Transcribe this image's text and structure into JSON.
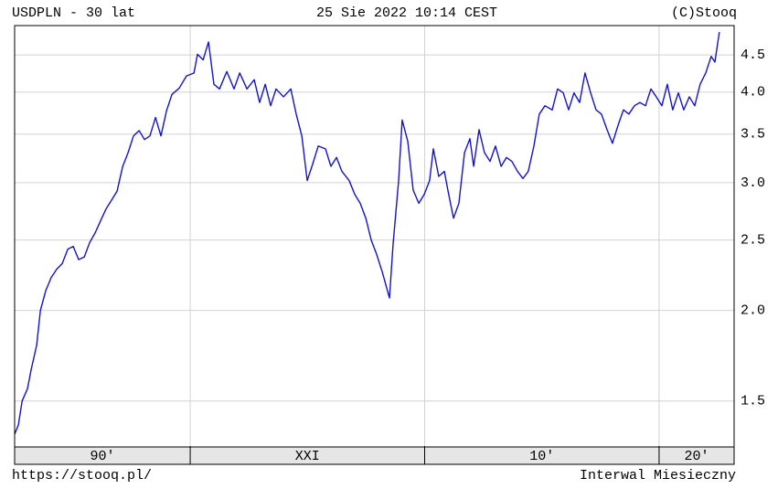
{
  "chart_data": {
    "type": "line",
    "title": "USDPLN - 30 lat",
    "date": "25 Sie 2022 10:14 CEST",
    "source": "(C)Stooq",
    "url": "https://stooq.pl/",
    "interval": "Interwal Miesieczny",
    "color": "#1414c8",
    "log_y": true,
    "grid": true,
    "xlim": [
      1992.51,
      2023.2
    ],
    "ylim": [
      1.3,
      4.94
    ],
    "yticks": [
      1.5,
      {
        "value": 2,
        "label": "2.0"
      },
      2.5,
      {
        "value": 3,
        "label": "3.0"
      },
      3.5,
      {
        "value": 4,
        "label": "4.0"
      },
      4.5
    ],
    "decades": [
      {
        "value": 1990,
        "label": "90'"
      },
      {
        "value": 2000,
        "label": "XXI"
      },
      {
        "value": 2010,
        "label": "10'"
      },
      {
        "value": 2020,
        "label": "20'"
      }
    ],
    "x": [
      1992.51,
      1992.67,
      1992.83,
      1993.06,
      1993.22,
      1993.45,
      1993.61,
      1993.84,
      1994.07,
      1994.31,
      1994.54,
      1994.78,
      1995.01,
      1995.24,
      1995.48,
      1995.71,
      1995.95,
      1996.18,
      1996.41,
      1996.65,
      1996.88,
      1997.12,
      1997.35,
      1997.58,
      1997.82,
      1998.05,
      1998.28,
      1998.52,
      1998.75,
      1998.99,
      1999.22,
      1999.53,
      1999.84,
      2000.16,
      2000.31,
      2000.55,
      2000.78,
      2001.01,
      2001.25,
      2001.56,
      2001.87,
      2002.11,
      2002.42,
      2002.73,
      2002.96,
      2003.2,
      2003.43,
      2003.66,
      2003.98,
      2004.29,
      2004.52,
      2004.76,
      2004.99,
      2005.22,
      2005.46,
      2005.77,
      2006.0,
      2006.24,
      2006.47,
      2006.78,
      2007.02,
      2007.25,
      2007.49,
      2007.72,
      2007.95,
      2008.19,
      2008.5,
      2008.65,
      2008.89,
      2009.04,
      2009.28,
      2009.51,
      2009.75,
      2009.98,
      2010.21,
      2010.37,
      2010.6,
      2010.84,
      2010.99,
      2011.23,
      2011.46,
      2011.7,
      2011.93,
      2012.09,
      2012.32,
      2012.55,
      2012.79,
      2013.02,
      2013.26,
      2013.49,
      2013.72,
      2013.96,
      2014.19,
      2014.42,
      2014.66,
      2014.89,
      2015.13,
      2015.44,
      2015.67,
      2015.91,
      2016.14,
      2016.37,
      2016.61,
      2016.84,
      2017.08,
      2017.31,
      2017.54,
      2017.78,
      2018.01,
      2018.25,
      2018.48,
      2018.71,
      2018.95,
      2019.18,
      2019.42,
      2019.65,
      2019.88,
      2020.12,
      2020.35,
      2020.58,
      2020.82,
      2021.05,
      2021.29,
      2021.52,
      2021.75,
      2021.99,
      2022.22,
      2022.38,
      2022.57
    ],
    "values": [
      1.35,
      1.39,
      1.5,
      1.56,
      1.66,
      1.79,
      2.0,
      2.13,
      2.22,
      2.28,
      2.32,
      2.43,
      2.45,
      2.35,
      2.37,
      2.48,
      2.56,
      2.66,
      2.76,
      2.84,
      2.92,
      3.16,
      3.3,
      3.48,
      3.54,
      3.44,
      3.48,
      3.69,
      3.48,
      3.77,
      3.97,
      4.05,
      4.21,
      4.25,
      4.51,
      4.43,
      4.69,
      4.1,
      4.04,
      4.27,
      4.04,
      4.25,
      4.04,
      4.16,
      3.87,
      4.1,
      3.83,
      4.04,
      3.94,
      4.04,
      3.73,
      3.48,
      3.02,
      3.18,
      3.37,
      3.34,
      3.16,
      3.25,
      3.11,
      3.02,
      2.89,
      2.81,
      2.68,
      2.5,
      2.39,
      2.26,
      2.08,
      2.46,
      3.02,
      3.66,
      3.42,
      2.93,
      2.81,
      2.89,
      3.02,
      3.34,
      3.06,
      3.11,
      2.93,
      2.68,
      2.81,
      3.3,
      3.45,
      3.16,
      3.55,
      3.3,
      3.21,
      3.37,
      3.16,
      3.25,
      3.21,
      3.11,
      3.04,
      3.11,
      3.37,
      3.73,
      3.83,
      3.78,
      4.04,
      3.99,
      3.78,
      3.99,
      3.87,
      4.25,
      3.99,
      3.78,
      3.73,
      3.55,
      3.4,
      3.6,
      3.78,
      3.73,
      3.83,
      3.87,
      3.83,
      4.04,
      3.94,
      3.83,
      4.1,
      3.78,
      3.99,
      3.78,
      3.94,
      3.83,
      4.1,
      4.25,
      4.48,
      4.4,
      4.84
    ]
  }
}
